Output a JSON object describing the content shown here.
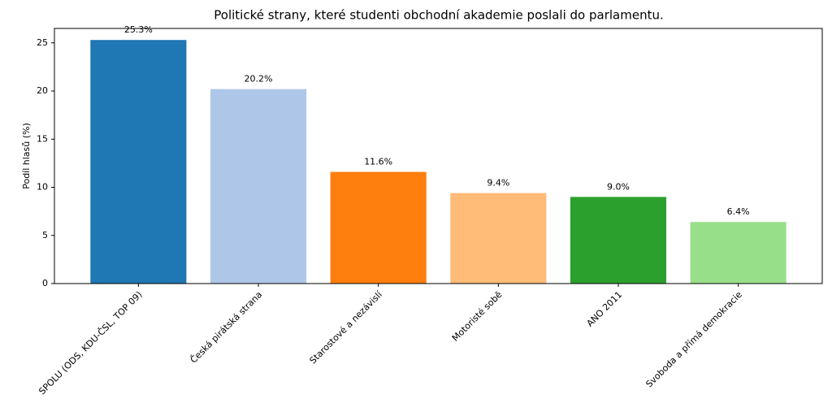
{
  "chart_data": {
    "type": "bar",
    "title": "Politické strany, které studenti obchodní akademie poslali do parlamentu.",
    "ylabel": "Podíl hlasů (%)",
    "categories": [
      "SPOLU (ODS, KDU-ČSL, TOP 09)",
      "Česká pirátská strana",
      "Starostové a nezávislí",
      "Motoristé sobě",
      "ANO 2011",
      "Svoboda a přímá demokracie"
    ],
    "values": [
      25.3,
      20.2,
      11.6,
      9.4,
      9.0,
      6.4
    ],
    "value_labels": [
      "25.3%",
      "20.2%",
      "11.6%",
      "9.4%",
      "9.0%",
      "6.4%"
    ],
    "colors": [
      "#1f77b4",
      "#aec7e8",
      "#ff7f0e",
      "#ffbb78",
      "#2ca02c",
      "#98df8a"
    ],
    "ylim": [
      0,
      26.5
    ],
    "yticks": [
      0,
      5,
      10,
      15,
      20,
      25
    ],
    "grid": false
  }
}
